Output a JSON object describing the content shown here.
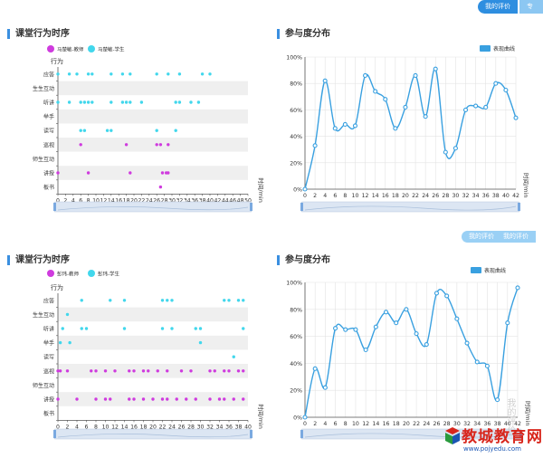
{
  "header": {
    "tab_active": "我的评价",
    "tab_inactive": "专家",
    "ghost_tab": "我的评价",
    "ghost_tab2": "我的评价"
  },
  "watermark": "我的评价",
  "logo": {
    "text": "教城教育网",
    "url": "www.pojyedu.com"
  },
  "timeline_categories": [
    "应答",
    "生生互动",
    "听讲",
    "举手",
    "读写",
    "巡视",
    "师生互动",
    "讲授",
    "板书"
  ],
  "chart_data": [
    {
      "type": "scatter",
      "title": "课堂行为时序",
      "ylabel": "行为",
      "xlabel": "时间/min",
      "legend": [
        "马楚敏-教师",
        "马楚敏-学生"
      ],
      "xticks": [
        0,
        2,
        4,
        6,
        8,
        10,
        12,
        14,
        16,
        18,
        20,
        22,
        24,
        26,
        28,
        30,
        32,
        34,
        36,
        38,
        40,
        42,
        44,
        46,
        48,
        50
      ],
      "xlim": [
        0,
        50
      ],
      "series": [
        {
          "name": "马楚敏-教师",
          "points": [
            {
              "x": 6,
              "y": "巡视"
            },
            {
              "x": 18,
              "y": "巡视"
            },
            {
              "x": 26,
              "y": "巡视"
            },
            {
              "x": 27,
              "y": "巡视"
            },
            {
              "x": 29,
              "y": "巡视"
            },
            {
              "x": 0,
              "y": "讲授"
            },
            {
              "x": 8,
              "y": "讲授"
            },
            {
              "x": 19,
              "y": "讲授"
            },
            {
              "x": 27.5,
              "y": "讲授"
            },
            {
              "x": 28.5,
              "y": "讲授"
            },
            {
              "x": 29,
              "y": "讲授"
            },
            {
              "x": 27,
              "y": "板书"
            }
          ]
        },
        {
          "name": "马楚敏-学生",
          "points": [
            {
              "x": 0,
              "y": "应答"
            },
            {
              "x": 3,
              "y": "应答"
            },
            {
              "x": 5,
              "y": "应答"
            },
            {
              "x": 8,
              "y": "应答"
            },
            {
              "x": 9,
              "y": "应答"
            },
            {
              "x": 14,
              "y": "应答"
            },
            {
              "x": 17,
              "y": "应答"
            },
            {
              "x": 19,
              "y": "应答"
            },
            {
              "x": 26,
              "y": "应答"
            },
            {
              "x": 29,
              "y": "应答"
            },
            {
              "x": 32,
              "y": "应答"
            },
            {
              "x": 38,
              "y": "应答"
            },
            {
              "x": 40,
              "y": "应答"
            },
            {
              "x": 0,
              "y": "听讲"
            },
            {
              "x": 3,
              "y": "听讲"
            },
            {
              "x": 6,
              "y": "听讲"
            },
            {
              "x": 7,
              "y": "听讲"
            },
            {
              "x": 8,
              "y": "听讲"
            },
            {
              "x": 9,
              "y": "听讲"
            },
            {
              "x": 14,
              "y": "听讲"
            },
            {
              "x": 17,
              "y": "听讲"
            },
            {
              "x": 18,
              "y": "听讲"
            },
            {
              "x": 19,
              "y": "听讲"
            },
            {
              "x": 22,
              "y": "听讲"
            },
            {
              "x": 31,
              "y": "听讲"
            },
            {
              "x": 32,
              "y": "听讲"
            },
            {
              "x": 35,
              "y": "听讲"
            },
            {
              "x": 37,
              "y": "听讲"
            },
            {
              "x": 6,
              "y": "读写"
            },
            {
              "x": 7,
              "y": "读写"
            },
            {
              "x": 13,
              "y": "读写"
            },
            {
              "x": 14,
              "y": "读写"
            },
            {
              "x": 26,
              "y": "读写"
            },
            {
              "x": 31,
              "y": "读写"
            }
          ]
        }
      ]
    },
    {
      "type": "line",
      "title": "参与度分布",
      "legend": [
        "表现曲线"
      ],
      "ylabel": "",
      "xlabel": "时间/min",
      "yticks": [
        "0%",
        "20%",
        "40%",
        "60%",
        "80%",
        "100%"
      ],
      "ylim": [
        0,
        100
      ],
      "x": [
        0,
        2,
        4,
        6,
        8,
        10,
        12,
        14,
        16,
        18,
        20,
        22,
        24,
        26,
        28,
        30,
        32,
        34,
        36,
        38,
        40,
        42
      ],
      "values": [
        0,
        33,
        82,
        46,
        49,
        48,
        86,
        74,
        68,
        46,
        62,
        86,
        55,
        91,
        28,
        31,
        60,
        63,
        62,
        80,
        75,
        54
      ]
    },
    {
      "type": "scatter",
      "title": "课堂行为时序",
      "ylabel": "行为",
      "xlabel": "时间/min",
      "legend": [
        "彭玮-教师",
        "彭玮-学生"
      ],
      "xticks": [
        0,
        2,
        4,
        6,
        8,
        10,
        12,
        14,
        16,
        18,
        20,
        22,
        24,
        26,
        28,
        30,
        32,
        34,
        36,
        38,
        40
      ],
      "xlim": [
        0,
        40
      ],
      "series": [
        {
          "name": "彭玮-教师",
          "points": [
            {
              "x": 0,
              "y": "巡视"
            },
            {
              "x": 0.5,
              "y": "巡视"
            },
            {
              "x": 2,
              "y": "巡视"
            },
            {
              "x": 7,
              "y": "巡视"
            },
            {
              "x": 8,
              "y": "巡视"
            },
            {
              "x": 10,
              "y": "巡视"
            },
            {
              "x": 12,
              "y": "巡视"
            },
            {
              "x": 15,
              "y": "巡视"
            },
            {
              "x": 16,
              "y": "巡视"
            },
            {
              "x": 18,
              "y": "巡视"
            },
            {
              "x": 19,
              "y": "巡视"
            },
            {
              "x": 21,
              "y": "巡视"
            },
            {
              "x": 23,
              "y": "巡视"
            },
            {
              "x": 26,
              "y": "巡视"
            },
            {
              "x": 28,
              "y": "巡视"
            },
            {
              "x": 32,
              "y": "巡视"
            },
            {
              "x": 33,
              "y": "巡视"
            },
            {
              "x": 35,
              "y": "巡视"
            },
            {
              "x": 36,
              "y": "巡视"
            },
            {
              "x": 38,
              "y": "巡视"
            },
            {
              "x": 39,
              "y": "巡视"
            },
            {
              "x": 0,
              "y": "讲授"
            },
            {
              "x": 4,
              "y": "讲授"
            },
            {
              "x": 8,
              "y": "讲授"
            },
            {
              "x": 10,
              "y": "讲授"
            },
            {
              "x": 11,
              "y": "讲授"
            },
            {
              "x": 15,
              "y": "讲授"
            },
            {
              "x": 16,
              "y": "讲授"
            },
            {
              "x": 18,
              "y": "讲授"
            },
            {
              "x": 20,
              "y": "讲授"
            },
            {
              "x": 22,
              "y": "讲授"
            },
            {
              "x": 23,
              "y": "讲授"
            },
            {
              "x": 25,
              "y": "讲授"
            },
            {
              "x": 27,
              "y": "讲授"
            },
            {
              "x": 29,
              "y": "讲授"
            },
            {
              "x": 32,
              "y": "讲授"
            },
            {
              "x": 34,
              "y": "讲授"
            },
            {
              "x": 35,
              "y": "讲授"
            },
            {
              "x": 37,
              "y": "讲授"
            },
            {
              "x": 39,
              "y": "讲授"
            }
          ]
        },
        {
          "name": "彭玮-学生",
          "points": [
            {
              "x": 5,
              "y": "应答"
            },
            {
              "x": 11,
              "y": "应答"
            },
            {
              "x": 14,
              "y": "应答"
            },
            {
              "x": 22,
              "y": "应答"
            },
            {
              "x": 23,
              "y": "应答"
            },
            {
              "x": 24,
              "y": "应答"
            },
            {
              "x": 35,
              "y": "应答"
            },
            {
              "x": 36,
              "y": "应答"
            },
            {
              "x": 38,
              "y": "应答"
            },
            {
              "x": 39,
              "y": "应答"
            },
            {
              "x": 2,
              "y": "生生互动"
            },
            {
              "x": 1,
              "y": "听讲"
            },
            {
              "x": 5,
              "y": "听讲"
            },
            {
              "x": 6,
              "y": "听讲"
            },
            {
              "x": 14,
              "y": "听讲"
            },
            {
              "x": 22,
              "y": "听讲"
            },
            {
              "x": 24,
              "y": "听讲"
            },
            {
              "x": 29,
              "y": "听讲"
            },
            {
              "x": 30,
              "y": "听讲"
            },
            {
              "x": 39,
              "y": "听讲"
            },
            {
              "x": 0.5,
              "y": "举手"
            },
            {
              "x": 2.5,
              "y": "举手"
            },
            {
              "x": 30,
              "y": "举手"
            },
            {
              "x": 37,
              "y": "读写"
            }
          ]
        }
      ]
    },
    {
      "type": "line",
      "title": "参与度分布",
      "legend": [
        "表现曲线"
      ],
      "ylabel": "",
      "xlabel": "时间/min",
      "yticks": [
        "0%",
        "20%",
        "40%",
        "60%",
        "80%",
        "100%"
      ],
      "ylim": [
        0,
        100
      ],
      "x": [
        0,
        2,
        4,
        6,
        8,
        10,
        12,
        14,
        16,
        18,
        20,
        22,
        24,
        26,
        28,
        30,
        32,
        34,
        36,
        38,
        40,
        42
      ],
      "values": [
        0,
        36,
        22,
        66,
        65,
        65,
        50,
        67,
        78,
        70,
        80,
        62,
        54,
        92,
        90,
        73,
        55,
        41,
        38,
        13,
        70,
        96
      ]
    }
  ],
  "colors": {
    "teacher": "#cf3bde",
    "student": "#42d7ec",
    "line": "#39a0e0",
    "band": "#efefef",
    "accent": "#2e8ee0"
  }
}
